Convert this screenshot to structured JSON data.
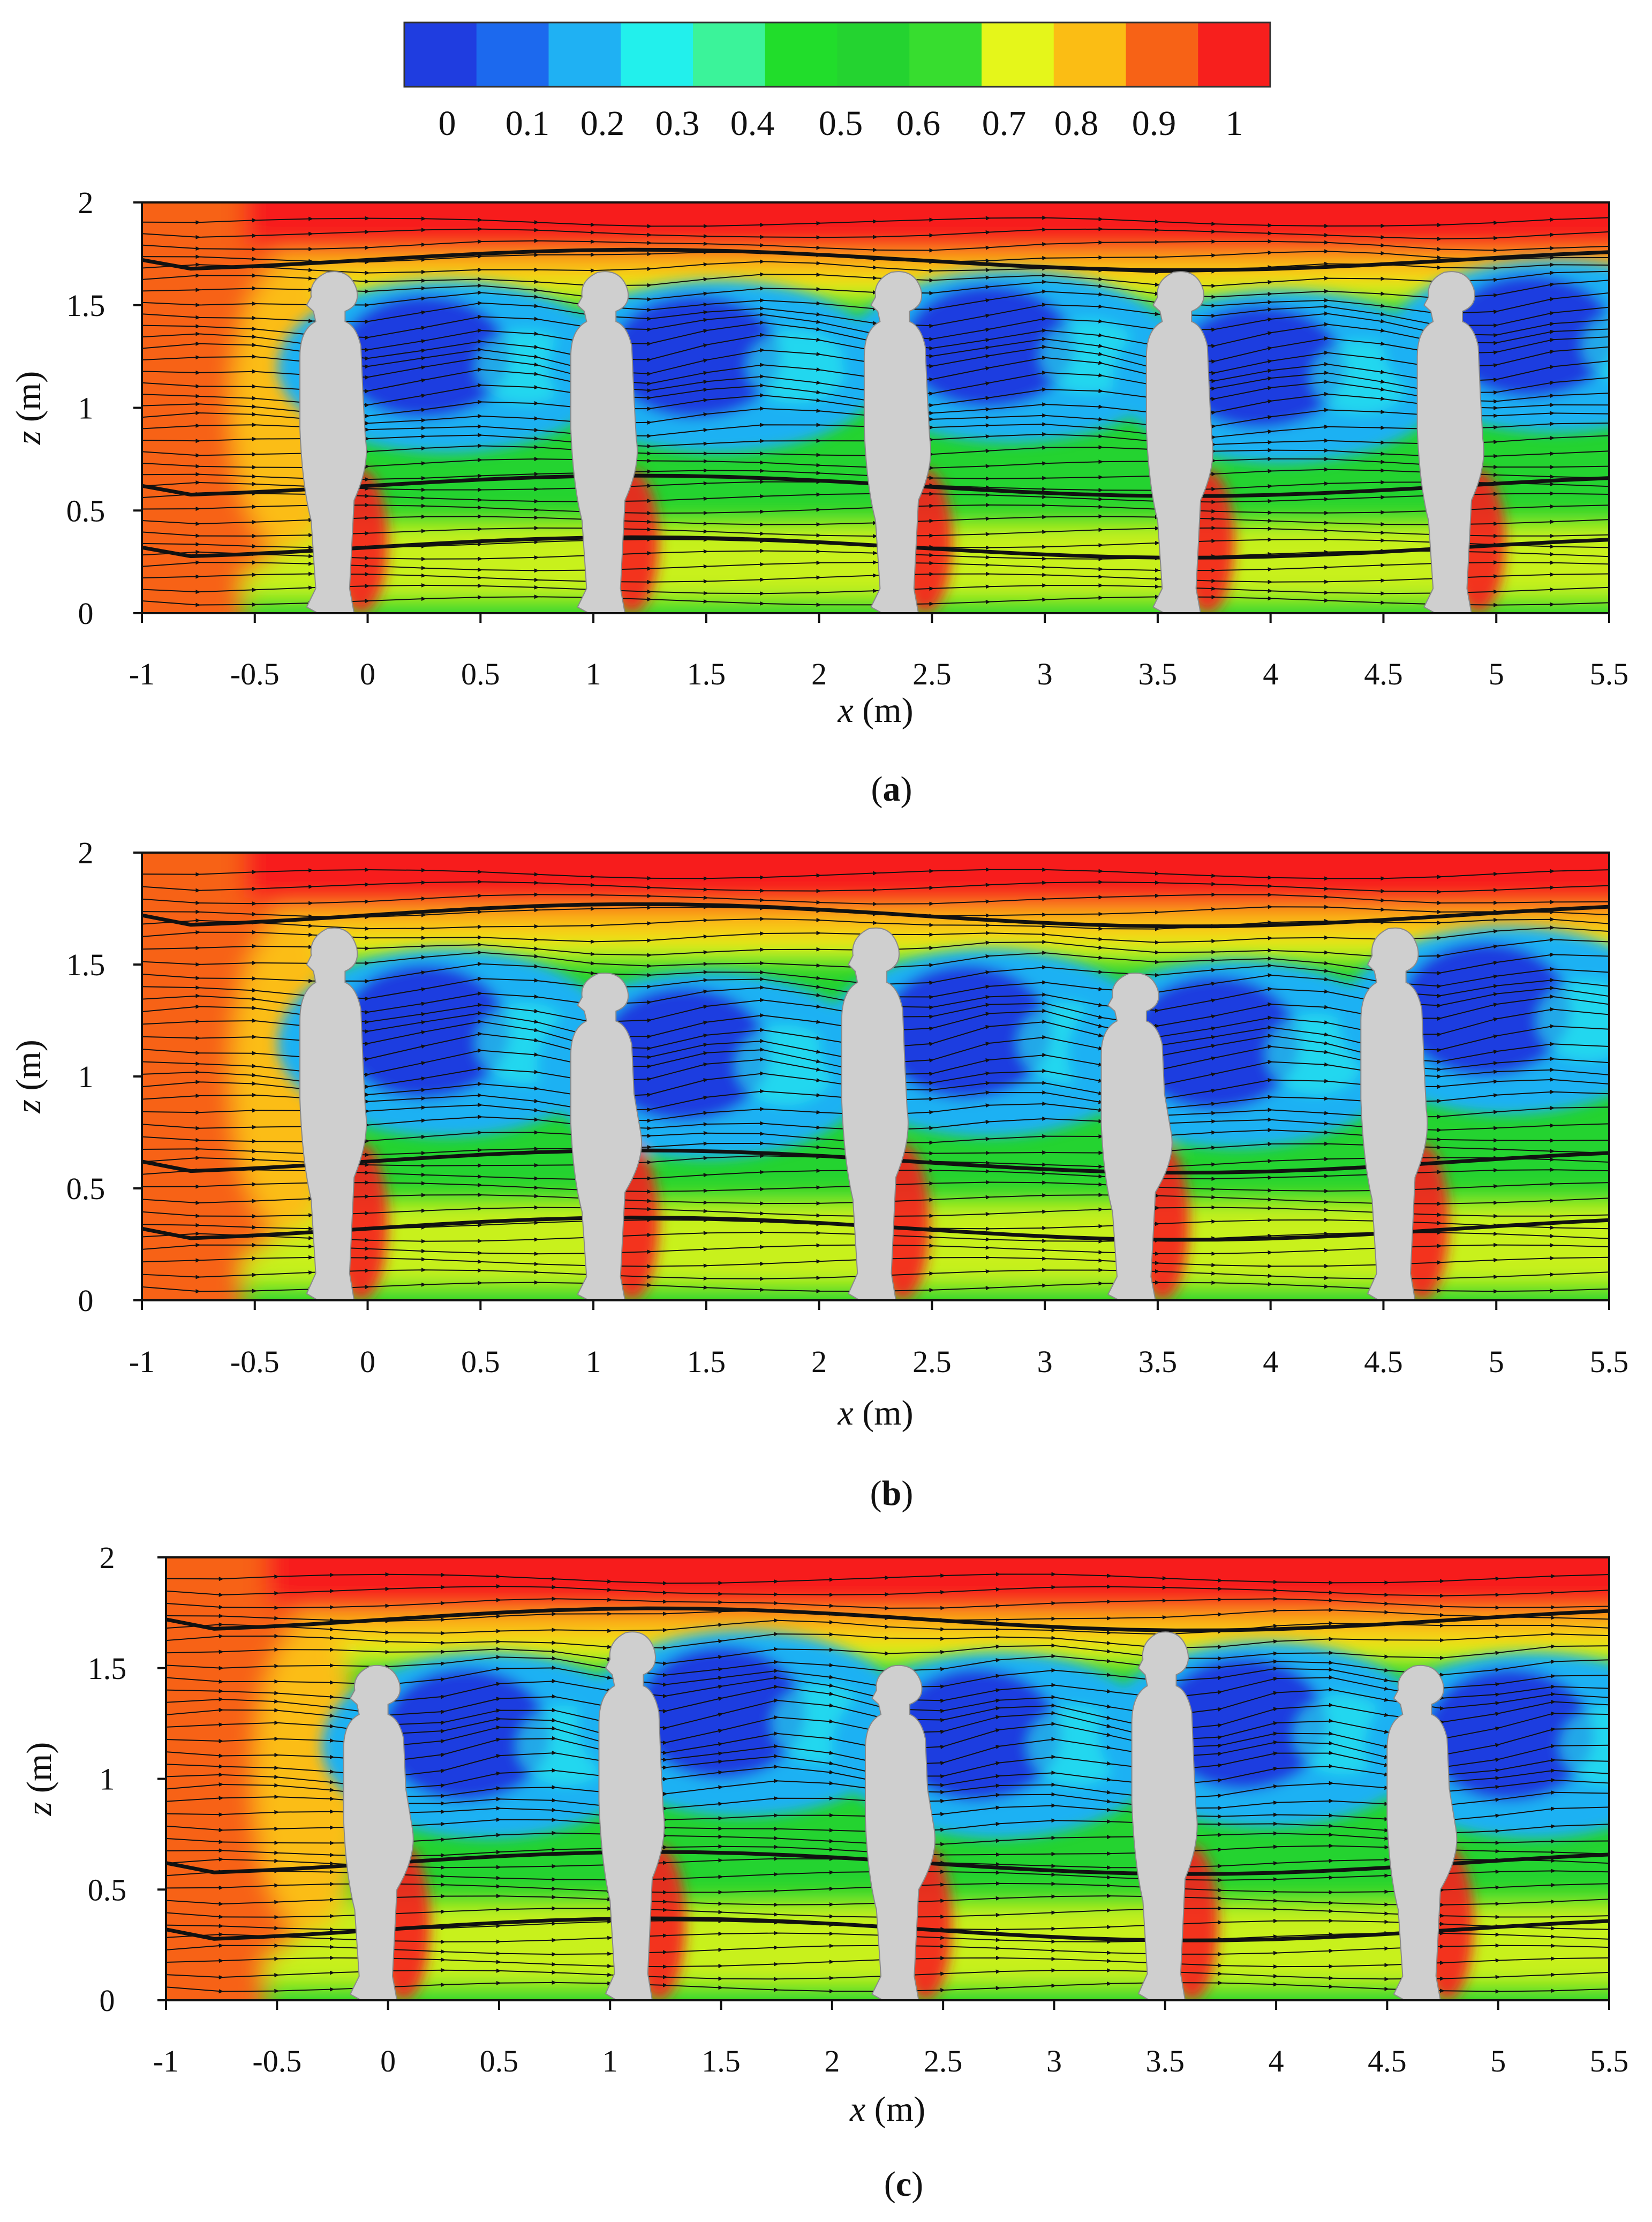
{
  "colorbar": {
    "colors": [
      "#1f3de0",
      "#1c69ee",
      "#1fb1f3",
      "#22f0ec",
      "#3bf39a",
      "#21dd2b",
      "#24d330",
      "#37dd2f",
      "#e5f61a",
      "#fbbd14",
      "#f76216",
      "#f71f1d"
    ],
    "tick_labels": [
      "0",
      "0.1",
      "0.2",
      "0.3",
      "0.4",
      "0.5",
      "0.6",
      "0.7",
      "0.8",
      "0.9",
      "1"
    ]
  },
  "chart_data": [
    {
      "type": "heatmap",
      "panel_label": "a",
      "xlabel_var": "x",
      "xlabel_unit": " (m)",
      "ylabel_var": "z",
      "ylabel_unit": " (m)",
      "xlim": [
        -1,
        5.5
      ],
      "ylim": [
        0,
        2
      ],
      "xticks": [
        "-1",
        "-0.5",
        "0",
        "0.5",
        "1",
        "1.5",
        "2",
        "2.5",
        "3",
        "3.5",
        "4",
        "4.5",
        "5",
        "5.5"
      ],
      "yticks": [
        "0",
        "0.5",
        "1",
        "1.5",
        "2"
      ],
      "mannequin_x": [
        -0.15,
        1.05,
        2.35,
        3.6,
        4.8
      ],
      "mannequin_height_m": [
        1.65,
        1.65,
        1.65,
        1.65,
        1.65
      ],
      "wake_zones": [
        [
          0.25,
          1.25
        ],
        [
          1.45,
          1.25
        ],
        [
          2.75,
          1.3
        ],
        [
          3.95,
          1.2
        ],
        [
          5.15,
          1.35
        ]
      ]
    },
    {
      "type": "heatmap",
      "panel_label": "b",
      "xlabel_var": "x",
      "xlabel_unit": " (m)",
      "ylabel_var": "z",
      "ylabel_unit": " (m)",
      "xlim": [
        -1,
        5.5
      ],
      "ylim": [
        0,
        2
      ],
      "xticks": [
        "-1",
        "-0.5",
        "0",
        "0.5",
        "1",
        "1.5",
        "2",
        "2.5",
        "3",
        "3.5",
        "4",
        "4.5",
        "5",
        "5.5"
      ],
      "yticks": [
        "0",
        "0.5",
        "1",
        "1.5",
        "2"
      ],
      "mannequin_x": [
        -0.15,
        1.05,
        2.25,
        3.4,
        4.55
      ],
      "mannequin_height_m": [
        1.65,
        1.45,
        1.65,
        1.45,
        1.65
      ],
      "wake_zones": [
        [
          0.25,
          1.2
        ],
        [
          1.4,
          1.1
        ],
        [
          2.65,
          1.2
        ],
        [
          3.75,
          1.15
        ],
        [
          4.95,
          1.3
        ]
      ]
    },
    {
      "type": "heatmap",
      "panel_label": "c",
      "xlabel_var": "x",
      "xlabel_unit": " (m)",
      "ylabel_var": "z",
      "ylabel_unit": " (m)",
      "xlim": [
        -1,
        5.5
      ],
      "ylim": [
        0,
        2
      ],
      "xticks": [
        "-1",
        "-0.5",
        "0",
        "0.5",
        "1",
        "1.5",
        "2",
        "2.5",
        "3",
        "3.5",
        "4",
        "4.5",
        "5",
        "5.5"
      ],
      "yticks": [
        "0",
        "0.5",
        "1",
        "1.5",
        "2"
      ],
      "mannequin_x": [
        -0.05,
        1.1,
        2.3,
        3.5,
        4.65
      ],
      "mannequin_height_m": [
        1.5,
        1.65,
        1.5,
        1.65,
        1.5
      ],
      "wake_zones": [
        [
          0.35,
          1.2
        ],
        [
          1.5,
          1.3
        ],
        [
          2.65,
          1.2
        ],
        [
          3.85,
          1.25
        ],
        [
          5.05,
          1.2
        ]
      ]
    }
  ]
}
